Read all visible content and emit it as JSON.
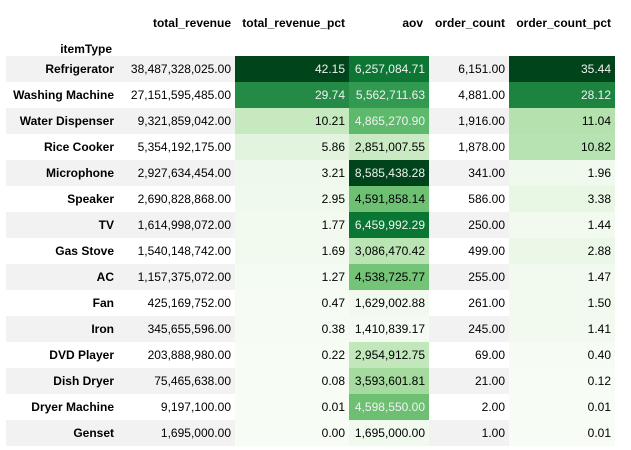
{
  "table": {
    "columns": [
      "total_revenue",
      "total_revenue_pct",
      "aov",
      "order_count",
      "order_count_pct"
    ],
    "index_name": "itemType",
    "gradient_colormap": "Greens",
    "rows": [
      {
        "label": "Refrigerator",
        "total_revenue": "38,487,328,025.00",
        "total_revenue_pct": "42.15",
        "aov": "6,257,084.71",
        "order_count": "6,151.00",
        "order_count_pct": "35.44",
        "bg": {
          "total_revenue_pct": "#00441b",
          "aov": "#0d7635",
          "order_count_pct": "#00441b"
        },
        "fg": {
          "total_revenue_pct": "#f1f1f1",
          "aov": "#f1f1f1",
          "order_count_pct": "#f1f1f1"
        }
      },
      {
        "label": "Washing Machine",
        "total_revenue": "27,151,595,485.00",
        "total_revenue_pct": "29.74",
        "aov": "5,562,711.63",
        "order_count": "4,881.00",
        "order_count_pct": "28.12",
        "bg": {
          "total_revenue_pct": "#238b45",
          "aov": "#319a50",
          "order_count_pct": "#1c843f"
        },
        "fg": {
          "total_revenue_pct": "#f1f1f1",
          "aov": "#f1f1f1",
          "order_count_pct": "#f1f1f1"
        }
      },
      {
        "label": "Water Dispenser",
        "total_revenue": "9,321,859,042.00",
        "total_revenue_pct": "10.21",
        "aov": "4,865,270.90",
        "order_count": "1,916.00",
        "order_count_pct": "11.04",
        "bg": {
          "total_revenue_pct": "#c7e9c0",
          "aov": "#5db96b",
          "order_count_pct": "#b4e1ad"
        },
        "fg": {
          "total_revenue_pct": "#000000",
          "aov": "#f1f1f1",
          "order_count_pct": "#000000"
        }
      },
      {
        "label": "Rice Cooker",
        "total_revenue": "5,354,192,175.00",
        "total_revenue_pct": "5.86",
        "aov": "2,851,007.55",
        "order_count": "1,878.00",
        "order_count_pct": "10.82",
        "bg": {
          "total_revenue_pct": "#e2f4dd",
          "aov": "#c9eac2",
          "order_count_pct": "#b7e2b1"
        },
        "fg": {
          "total_revenue_pct": "#000000",
          "aov": "#000000",
          "order_count_pct": "#000000"
        }
      },
      {
        "label": "Microphone",
        "total_revenue": "2,927,634,454.00",
        "total_revenue_pct": "3.21",
        "aov": "8,585,438.28",
        "order_count": "341.00",
        "order_count_pct": "1.96",
        "bg": {
          "total_revenue_pct": "#eef8eb",
          "aov": "#00441b",
          "order_count_pct": "#f0f9ed"
        },
        "fg": {
          "total_revenue_pct": "#000000",
          "aov": "#f1f1f1",
          "order_count_pct": "#000000"
        }
      },
      {
        "label": "Speaker",
        "total_revenue": "2,690,828,868.00",
        "total_revenue_pct": "2.95",
        "aov": "4,591,858.14",
        "order_count": "586.00",
        "order_count_pct": "3.38",
        "bg": {
          "total_revenue_pct": "#eff9ec",
          "aov": "#6ec173",
          "order_count_pct": "#e8f6e4"
        },
        "fg": {
          "total_revenue_pct": "#000000",
          "aov": "#000000",
          "order_count_pct": "#000000"
        }
      },
      {
        "label": "TV",
        "total_revenue": "1,614,998,072.00",
        "total_revenue_pct": "1.77",
        "aov": "6,459,992.29",
        "order_count": "250.00",
        "order_count_pct": "1.44",
        "bg": {
          "total_revenue_pct": "#f2faf0",
          "aov": "#0a7633",
          "order_count_pct": "#f2faf0"
        },
        "fg": {
          "total_revenue_pct": "#000000",
          "aov": "#f1f1f1",
          "order_count_pct": "#000000"
        }
      },
      {
        "label": "Gas Stove",
        "total_revenue": "1,540,148,742.00",
        "total_revenue_pct": "1.69",
        "aov": "3,086,470.42",
        "order_count": "499.00",
        "order_count_pct": "2.88",
        "bg": {
          "total_revenue_pct": "#f2faf0",
          "aov": "#bbe4b4",
          "order_count_pct": "#ebf7e7"
        },
        "fg": {
          "total_revenue_pct": "#000000",
          "aov": "#000000",
          "order_count_pct": "#000000"
        }
      },
      {
        "label": "AC",
        "total_revenue": "1,157,375,072.00",
        "total_revenue_pct": "1.27",
        "aov": "4,538,725.77",
        "order_count": "255.00",
        "order_count_pct": "1.47",
        "bg": {
          "total_revenue_pct": "#f4fbf2",
          "aov": "#73c476",
          "order_count_pct": "#f2faf0"
        },
        "fg": {
          "total_revenue_pct": "#000000",
          "aov": "#000000",
          "order_count_pct": "#000000"
        }
      },
      {
        "label": "Fan",
        "total_revenue": "425,169,752.00",
        "total_revenue_pct": "0.47",
        "aov": "1,629,002.88",
        "order_count": "261.00",
        "order_count_pct": "1.50",
        "bg": {
          "total_revenue_pct": "#f6fcf4",
          "aov": "#f2faf0",
          "order_count_pct": "#f2faf0"
        },
        "fg": {
          "total_revenue_pct": "#000000",
          "aov": "#000000",
          "order_count_pct": "#000000"
        }
      },
      {
        "label": "Iron",
        "total_revenue": "345,655,596.00",
        "total_revenue_pct": "0.38",
        "aov": "1,410,839.17",
        "order_count": "245.00",
        "order_count_pct": "1.41",
        "bg": {
          "total_revenue_pct": "#f6fcf4",
          "aov": "#f5fbf3",
          "order_count_pct": "#f2faf0"
        },
        "fg": {
          "total_revenue_pct": "#000000",
          "aov": "#000000",
          "order_count_pct": "#000000"
        }
      },
      {
        "label": "DVD Player",
        "total_revenue": "203,888,980.00",
        "total_revenue_pct": "0.22",
        "aov": "2,954,912.75",
        "order_count": "69.00",
        "order_count_pct": "0.40",
        "bg": {
          "total_revenue_pct": "#f7fcf5",
          "aov": "#c2e7bb",
          "order_count_pct": "#f6fcf4"
        },
        "fg": {
          "total_revenue_pct": "#000000",
          "aov": "#000000",
          "order_count_pct": "#000000"
        }
      },
      {
        "label": "Dish Dryer",
        "total_revenue": "75,465,638.00",
        "total_revenue_pct": "0.08",
        "aov": "3,593,601.81",
        "order_count": "21.00",
        "order_count_pct": "0.12",
        "bg": {
          "total_revenue_pct": "#f7fcf5",
          "aov": "#a6dba0",
          "order_count_pct": "#f7fcf5"
        },
        "fg": {
          "total_revenue_pct": "#000000",
          "aov": "#000000",
          "order_count_pct": "#000000"
        }
      },
      {
        "label": "Dryer Machine",
        "total_revenue": "9,197,100.00",
        "total_revenue_pct": "0.01",
        "aov": "4,598,550.00",
        "order_count": "2.00",
        "order_count_pct": "0.01",
        "bg": {
          "total_revenue_pct": "#f7fcf5",
          "aov": "#6dc072",
          "order_count_pct": "#f7fcf5"
        },
        "fg": {
          "total_revenue_pct": "#000000",
          "aov": "#f1f1f1",
          "order_count_pct": "#000000"
        }
      },
      {
        "label": "Genset",
        "total_revenue": "1,695,000.00",
        "total_revenue_pct": "0.00",
        "aov": "1,695,000.00",
        "order_count": "1.00",
        "order_count_pct": "0.01",
        "bg": {
          "total_revenue_pct": "#f7fcf5",
          "aov": "#f1faee",
          "order_count_pct": "#f7fcf5"
        },
        "fg": {
          "total_revenue_pct": "#000000",
          "aov": "#000000",
          "order_count_pct": "#000000"
        }
      }
    ]
  }
}
